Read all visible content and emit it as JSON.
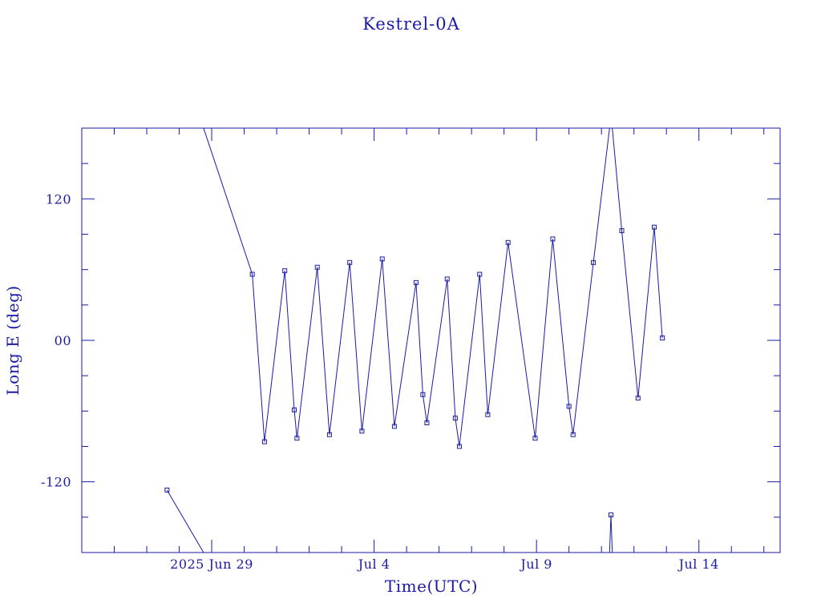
{
  "chart_data": {
    "type": "line",
    "title": "Kestrel-0A",
    "xlabel": "Time(UTC)",
    "ylabel": "Long E (deg)",
    "x_unit": "days",
    "xlim": [
      "2025-06-25T00:00",
      "2025-07-16T12:00"
    ],
    "ylim": [
      -180,
      180
    ],
    "grid": false,
    "legend": "none",
    "x_ticks": [
      {
        "t": "2025-06-29",
        "label": "2025 Jun 29"
      },
      {
        "t": "2025-07-04",
        "label": "Jul  4"
      },
      {
        "t": "2025-07-09",
        "label": "Jul  9"
      },
      {
        "t": "2025-07-14",
        "label": "Jul 14"
      }
    ],
    "y_ticks": [
      {
        "v": 120,
        "label": "120"
      },
      {
        "v": 0,
        "label": "00"
      },
      {
        "v": -120,
        "label": "-120"
      }
    ],
    "series": [
      {
        "color": "#1a1aa6",
        "marker": "square",
        "points": [
          {
            "t": "2025-06-27T15:00",
            "y": -127,
            "m": true
          },
          {
            "t": "2025-06-28T18:00",
            "y": -180,
            "m": false,
            "break_after": true
          },
          {
            "t": "2025-06-28T18:00",
            "y": 180,
            "m": false
          },
          {
            "t": "2025-06-30T06:00",
            "y": 56,
            "m": true
          },
          {
            "t": "2025-06-30T15:00",
            "y": -86,
            "m": true
          },
          {
            "t": "2025-07-01T06:00",
            "y": 59,
            "m": true
          },
          {
            "t": "2025-07-01T13:00",
            "y": -59,
            "m": true
          },
          {
            "t": "2025-07-01T15:00",
            "y": -83,
            "m": true
          },
          {
            "t": "2025-07-02T06:00",
            "y": 62,
            "m": true
          },
          {
            "t": "2025-07-02T15:00",
            "y": -80,
            "m": true
          },
          {
            "t": "2025-07-03T06:00",
            "y": 66,
            "m": true
          },
          {
            "t": "2025-07-03T15:00",
            "y": -77,
            "m": true
          },
          {
            "t": "2025-07-04T06:00",
            "y": 69,
            "m": true
          },
          {
            "t": "2025-07-04T15:00",
            "y": -73,
            "m": true
          },
          {
            "t": "2025-07-05T07:00",
            "y": 49,
            "m": true
          },
          {
            "t": "2025-07-05T12:00",
            "y": -46,
            "m": true
          },
          {
            "t": "2025-07-05T15:00",
            "y": -70,
            "m": true
          },
          {
            "t": "2025-07-06T06:00",
            "y": 52,
            "m": true
          },
          {
            "t": "2025-07-06T12:00",
            "y": -66,
            "m": true
          },
          {
            "t": "2025-07-06T15:00",
            "y": -90,
            "m": true
          },
          {
            "t": "2025-07-07T06:00",
            "y": 56,
            "m": true
          },
          {
            "t": "2025-07-07T12:00",
            "y": -63,
            "m": true
          },
          {
            "t": "2025-07-08T03:00",
            "y": 83,
            "m": true
          },
          {
            "t": "2025-07-08T23:00",
            "y": -83,
            "m": true
          },
          {
            "t": "2025-07-09T12:00",
            "y": 86,
            "m": true
          },
          {
            "t": "2025-07-10T00:00",
            "y": -56,
            "m": true
          },
          {
            "t": "2025-07-10T03:00",
            "y": -80,
            "m": true
          },
          {
            "t": "2025-07-10T18:00",
            "y": 66,
            "m": true
          },
          {
            "t": "2025-07-11T06:00",
            "y": 180,
            "m": false,
            "break_after": true
          },
          {
            "t": "2025-07-11T06:00",
            "y": -180,
            "m": false
          },
          {
            "t": "2025-07-11T07:00",
            "y": -148,
            "m": true
          },
          {
            "t": "2025-07-11T08:00",
            "y": -180,
            "m": false,
            "break_after": true
          },
          {
            "t": "2025-07-11T08:00",
            "y": 180,
            "m": false
          },
          {
            "t": "2025-07-11T15:00",
            "y": 93,
            "m": true
          },
          {
            "t": "2025-07-12T03:00",
            "y": -49,
            "m": true
          },
          {
            "t": "2025-07-12T15:00",
            "y": 96,
            "m": true
          },
          {
            "t": "2025-07-12T21:00",
            "y": 2,
            "m": true
          }
        ]
      }
    ]
  }
}
